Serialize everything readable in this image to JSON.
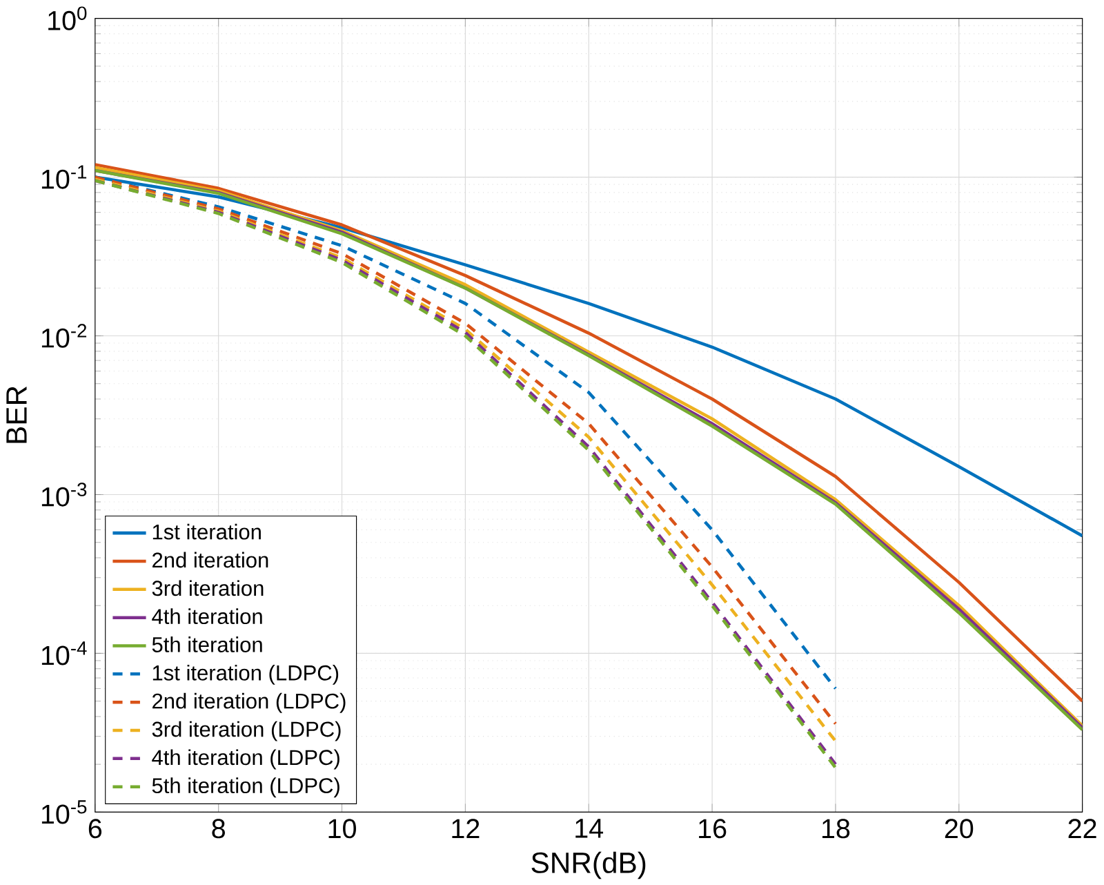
{
  "chart_data": {
    "type": "line",
    "xlabel": "SNR(dB)",
    "ylabel": "BER",
    "log": "y",
    "grid": true,
    "legend": "bottom left",
    "xlim": [
      6,
      22
    ],
    "xticks": [
      6,
      8,
      10,
      12,
      14,
      16,
      18,
      20,
      22
    ],
    "ylim": [
      1e-05,
      1
    ],
    "yticks": [
      {
        "value": 1e-05,
        "label": "10$^{-5}$"
      },
      {
        "value": 0.0001,
        "label": "10$^{-4}$"
      },
      {
        "value": 0.001,
        "label": "10$^{-3}$"
      },
      {
        "value": 0.01,
        "label": "10$^{-2}$"
      },
      {
        "value": 0.1,
        "label": "10$^{-1}$"
      },
      {
        "value": 1,
        "label": "10$^{0}$"
      }
    ],
    "x": [
      6,
      8,
      10,
      12,
      14,
      16,
      18,
      20,
      22
    ],
    "series": [
      {
        "name": "1st iteration",
        "color": "#0072bd",
        "line_style": "solid",
        "values": [
          0.1,
          0.075,
          0.048,
          0.028,
          0.016,
          0.0085,
          0.004,
          0.0015,
          0.00055
        ]
      },
      {
        "name": "2nd iteration",
        "color": "#d95319",
        "line_style": "solid",
        "values": [
          0.12,
          0.085,
          0.05,
          0.024,
          0.0104,
          0.004,
          0.0013,
          0.00028,
          5e-05
        ]
      },
      {
        "name": "3rd iteration",
        "color": "#edb120",
        "line_style": "solid",
        "values": [
          0.115,
          0.082,
          0.046,
          0.021,
          0.0079,
          0.003,
          0.00093,
          0.0002,
          3.5e-05
        ]
      },
      {
        "name": "4th iteration",
        "color": "#7e2f8e",
        "line_style": "solid",
        "values": [
          0.11,
          0.08,
          0.045,
          0.02,
          0.0076,
          0.0028,
          0.00089,
          0.00019,
          3.4e-05
        ]
      },
      {
        "name": "5th iteration",
        "color": "#77ac30",
        "line_style": "solid",
        "values": [
          0.11,
          0.079,
          0.044,
          0.02,
          0.0075,
          0.0027,
          0.00087,
          0.00018,
          3.3e-05
        ]
      },
      {
        "name": "1st iteration (LDPC)",
        "color": "#0072bd",
        "line_style": "dashed",
        "x": [
          6,
          8,
          10,
          12,
          14,
          16,
          18
        ],
        "values": [
          0.1,
          0.065,
          0.037,
          0.016,
          0.0044,
          0.0006,
          6e-05
        ]
      },
      {
        "name": "2nd iteration (LDPC)",
        "color": "#d95319",
        "line_style": "dashed",
        "x": [
          6,
          8,
          10,
          12,
          14,
          16,
          18
        ],
        "values": [
          0.1,
          0.063,
          0.033,
          0.012,
          0.0028,
          0.00035,
          3.6e-05
        ]
      },
      {
        "name": "3rd iteration (LDPC)",
        "color": "#edb120",
        "line_style": "dashed",
        "x": [
          6,
          8,
          10,
          12,
          14,
          16,
          18
        ],
        "values": [
          0.097,
          0.061,
          0.031,
          0.011,
          0.0023,
          0.00027,
          2.8e-05
        ]
      },
      {
        "name": "4th iteration (LDPC)",
        "color": "#7e2f8e",
        "line_style": "dashed",
        "x": [
          6,
          8,
          10,
          12,
          14,
          16,
          18
        ],
        "values": [
          0.095,
          0.06,
          0.03,
          0.0105,
          0.002,
          0.00021,
          2e-05
        ]
      },
      {
        "name": "5th iteration (LDPC)",
        "color": "#77ac30",
        "line_style": "dashed",
        "x": [
          6,
          8,
          10,
          12,
          14,
          16,
          18
        ],
        "values": [
          0.095,
          0.059,
          0.029,
          0.01,
          0.0019,
          0.0002,
          1.9e-05
        ]
      }
    ]
  }
}
